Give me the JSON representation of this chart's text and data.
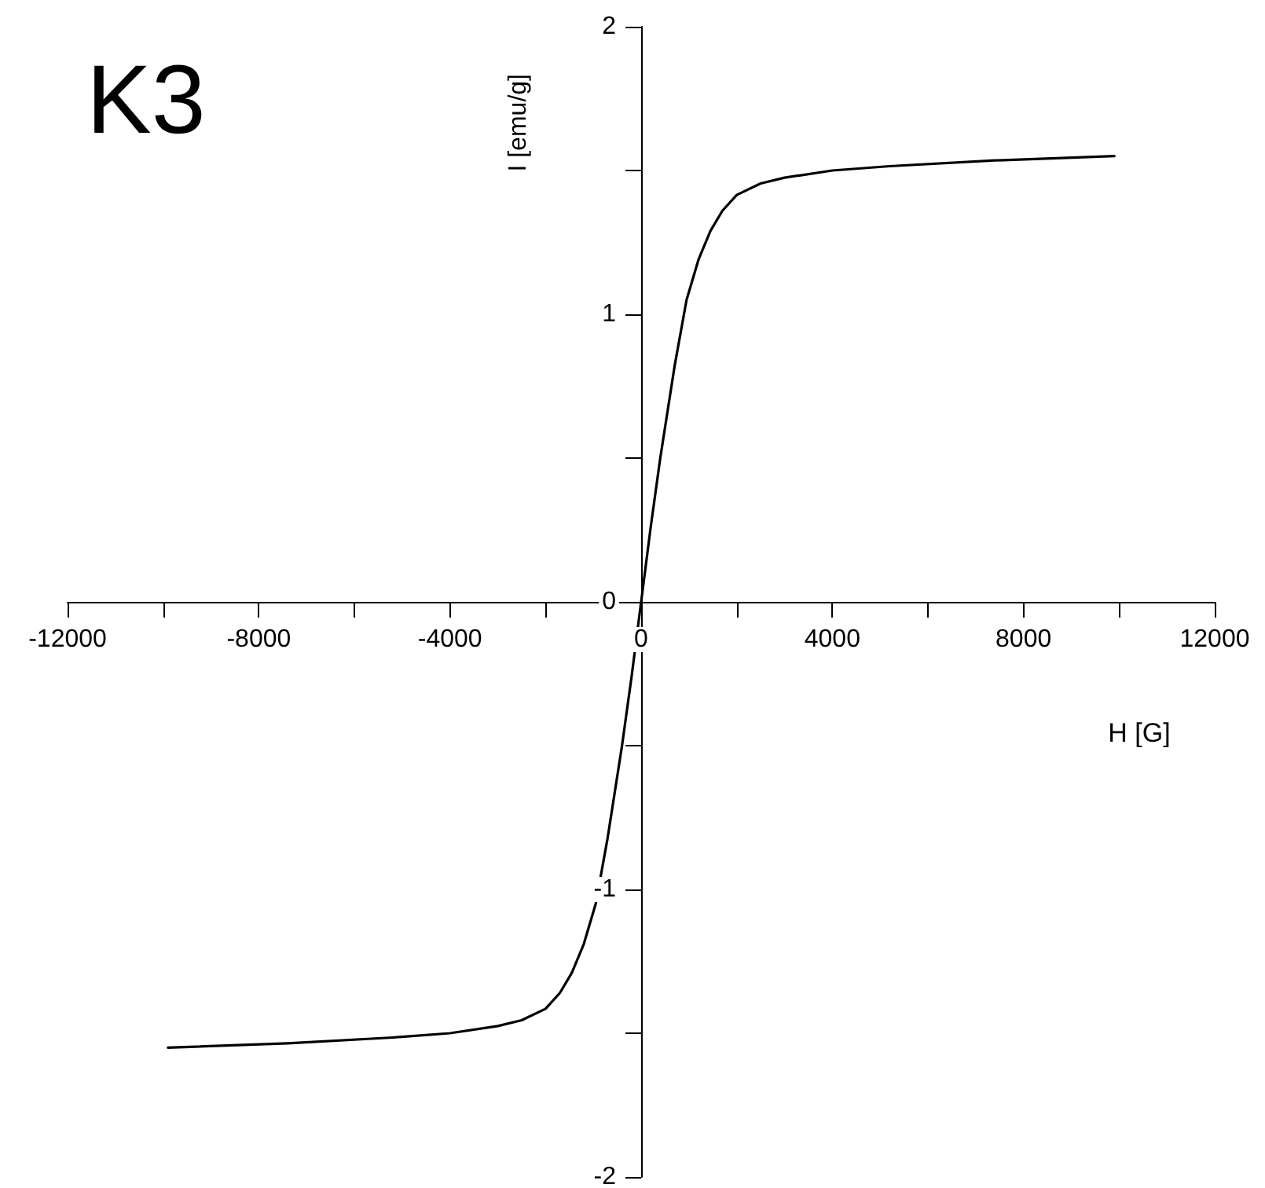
{
  "chart_data": {
    "type": "line",
    "title": "K3",
    "xlabel": "H [G]",
    "ylabel": "I [emu/g]",
    "x": [
      -9900,
      -7400,
      -5200,
      -4000,
      -3000,
      -2500,
      -2000,
      -1700,
      -1450,
      -1200,
      -950,
      -700,
      -400,
      -200,
      0,
      200,
      400,
      700,
      950,
      1200,
      1450,
      1700,
      2000,
      2500,
      3000,
      4000,
      5200,
      7400,
      9900
    ],
    "series": [
      {
        "color": "#000000",
        "values": [
          -1.55,
          -1.535,
          -1.515,
          -1.5,
          -1.475,
          -1.455,
          -1.415,
          -1.36,
          -1.29,
          -1.19,
          -1.05,
          -0.82,
          -0.5,
          -0.26,
          0,
          0.26,
          0.5,
          0.82,
          1.05,
          1.19,
          1.29,
          1.36,
          1.415,
          1.455,
          1.475,
          1.5,
          1.515,
          1.535,
          1.55
        ]
      }
    ],
    "xlim": [
      -12000,
      12000
    ],
    "xticks": [
      -12000,
      {
        "value": -10000,
        "label": null
      },
      -8000,
      {
        "value": -6000,
        "label": null
      },
      -4000,
      {
        "value": -2000,
        "label": null
      },
      0,
      {
        "value": 2000,
        "label": null
      },
      4000,
      {
        "value": 6000,
        "label": null
      },
      8000,
      {
        "value": 10000,
        "label": null
      },
      12000
    ],
    "ylim": [
      -2,
      2
    ],
    "yticks": [
      -2,
      {
        "value": -1.5,
        "label": null
      },
      -1,
      {
        "value": -0.5,
        "label": null
      },
      0,
      {
        "value": 0.5,
        "label": null
      },
      1,
      {
        "value": 1.5,
        "label": null
      },
      2
    ],
    "grid": false,
    "marker": "none",
    "line_style": "solid"
  }
}
